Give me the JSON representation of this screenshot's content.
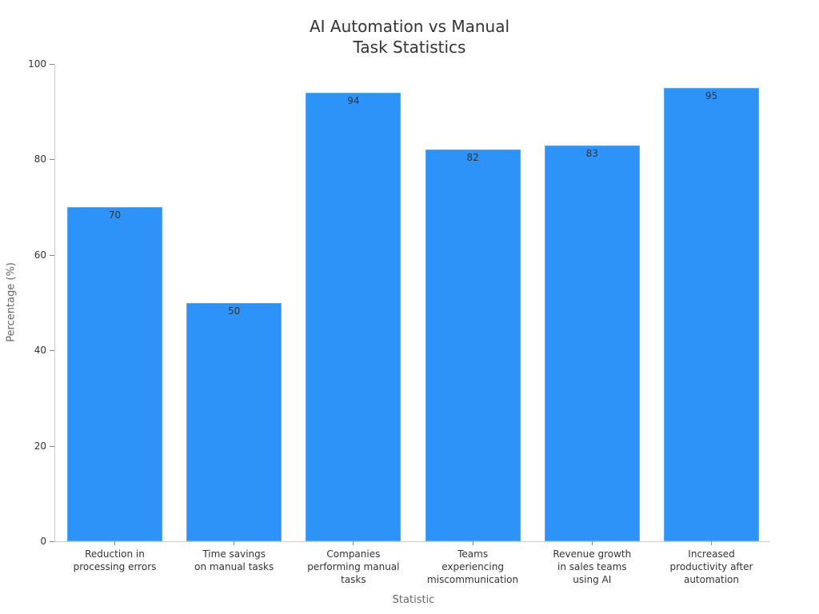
{
  "chart_data": {
    "type": "bar",
    "title": "AI Automation vs Manual\nTask Statistics",
    "xlabel": "Statistic",
    "ylabel": "Percentage (%)",
    "ylim": [
      0,
      100
    ],
    "yticks": [
      0,
      20,
      40,
      60,
      80,
      100
    ],
    "grid": false,
    "legend": null,
    "bar_color": "#2e93f8",
    "categories": [
      "Reduction in\nprocessing errors",
      "Time savings\non manual tasks",
      "Companies\nperforming manual\ntasks",
      "Teams\nexperiencing\nmiscommunication",
      "Revenue growth\nin sales teams\nusing AI",
      "Increased\nproductivity after\nautomation"
    ],
    "values": [
      70,
      50,
      94,
      82,
      83,
      95
    ],
    "data_labels": [
      "70",
      "50",
      "94",
      "82",
      "83",
      "95"
    ]
  },
  "title_lines": [
    "AI Automation vs Manual",
    "Task Statistics"
  ]
}
